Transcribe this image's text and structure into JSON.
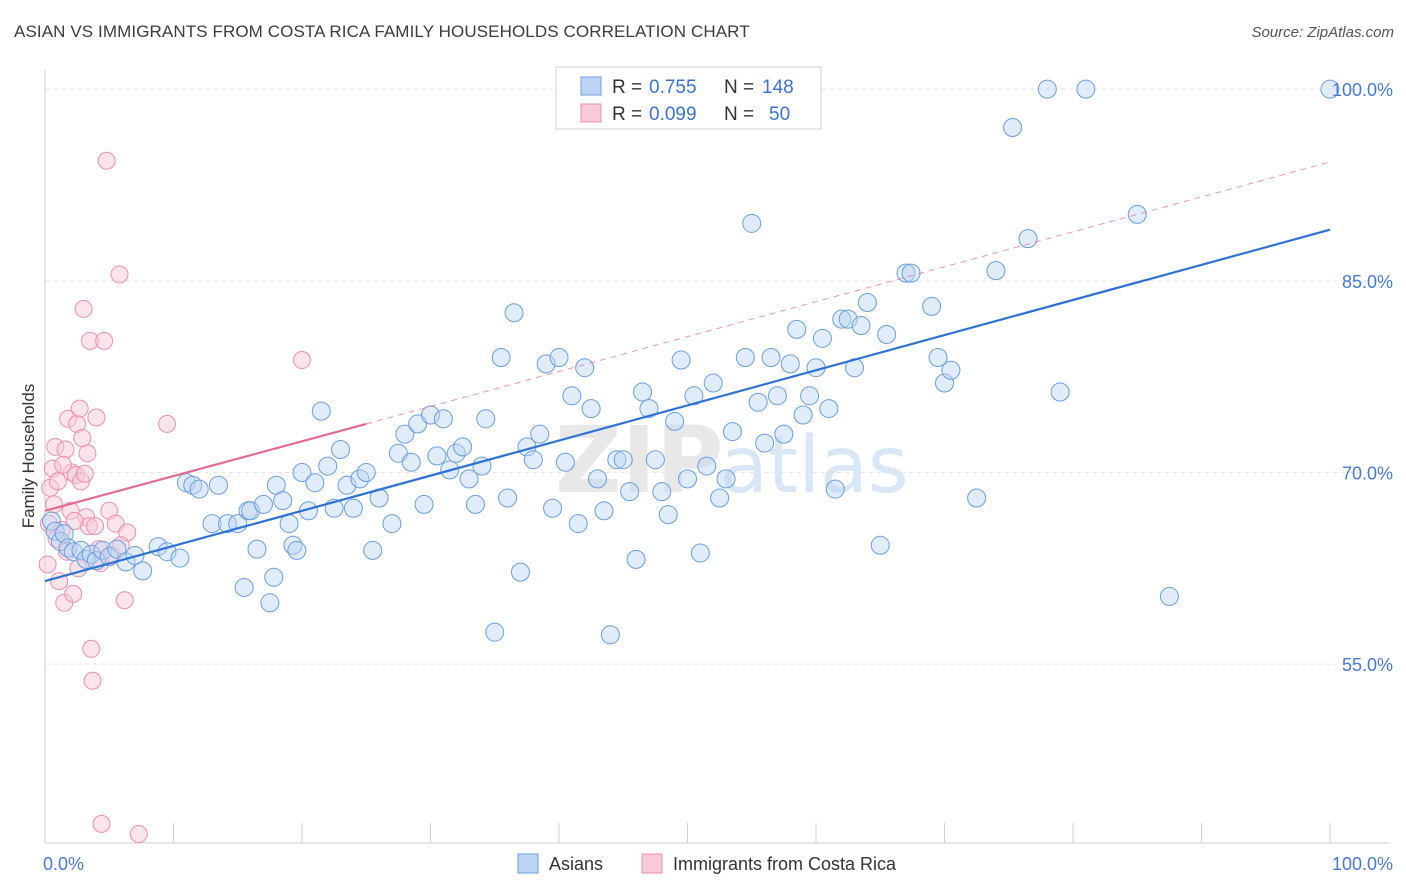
{
  "header": {
    "title": "ASIAN VS IMMIGRANTS FROM COSTA RICA FAMILY HOUSEHOLDS CORRELATION CHART",
    "source": "Source: ZipAtlas.com"
  },
  "watermark": {
    "zip": "ZIP",
    "atlas": "atlas"
  },
  "legend_top": {
    "rows": [
      {
        "r_label": "R =",
        "r_value": "0.755",
        "n_label": "N =",
        "n_value": "148",
        "color": "#a9c8f2"
      },
      {
        "r_label": "R =",
        "r_value": "0.099",
        "n_label": "N =",
        "n_value": "50",
        "color": "#f7b9cc"
      }
    ]
  },
  "chart_data": {
    "type": "scatter",
    "title": "ASIAN VS IMMIGRANTS FROM COSTA RICA FAMILY HOUSEHOLDS CORRELATION CHART",
    "xlabel": "",
    "ylabel": "Family Households",
    "xlim": [
      0,
      100
    ],
    "ylim": [
      41,
      101.5
    ],
    "x_tick_labels": [
      "0.0%",
      "100.0%"
    ],
    "y_ticks": [
      55,
      70,
      85,
      100
    ],
    "y_tick_labels": [
      "55.0%",
      "70.0%",
      "85.0%",
      "100.0%"
    ],
    "legend_position": "bottom-center",
    "colors": {
      "asians": "#6a9ee0",
      "asians_fill": "#bcd5f5",
      "asians_line": "#2e73d2",
      "costa": "#ee8fae",
      "costa_fill": "#f9c9d8",
      "costa_line": "#e36b95",
      "axis_text": "#4a7ad0"
    },
    "series": [
      {
        "name": "Asians",
        "R": 0.755,
        "N": 148,
        "trend": {
          "x": [
            0,
            100
          ],
          "y": [
            61.5,
            89.0
          ]
        },
        "points": [
          [
            0.5,
            66.2
          ],
          [
            0.8,
            65.4
          ],
          [
            1.2,
            64.6
          ],
          [
            1.5,
            65.2
          ],
          [
            1.8,
            64.1
          ],
          [
            2.2,
            63.8
          ],
          [
            2.8,
            63.9
          ],
          [
            3.2,
            63.2
          ],
          [
            3.6,
            63.6
          ],
          [
            4.0,
            63.1
          ],
          [
            4.5,
            63.9
          ],
          [
            5.0,
            63.4
          ],
          [
            5.6,
            64.0
          ],
          [
            6.3,
            63.0
          ],
          [
            7.0,
            63.5
          ],
          [
            7.6,
            62.3
          ],
          [
            8.8,
            64.2
          ],
          [
            9.5,
            63.8
          ],
          [
            10.5,
            63.3
          ],
          [
            11.0,
            69.2
          ],
          [
            11.5,
            69.0
          ],
          [
            12.0,
            68.7
          ],
          [
            13.0,
            66.0
          ],
          [
            13.5,
            69.0
          ],
          [
            14.2,
            66.0
          ],
          [
            15.0,
            66.0
          ],
          [
            15.5,
            61.0
          ],
          [
            15.8,
            67.0
          ],
          [
            16.0,
            67.0
          ],
          [
            16.5,
            64.0
          ],
          [
            17.0,
            67.5
          ],
          [
            17.5,
            59.8
          ],
          [
            17.8,
            61.8
          ],
          [
            18.0,
            69.0
          ],
          [
            18.5,
            67.8
          ],
          [
            19.0,
            66.0
          ],
          [
            19.3,
            64.3
          ],
          [
            19.6,
            63.9
          ],
          [
            20.0,
            70.0
          ],
          [
            20.5,
            67.0
          ],
          [
            21.0,
            69.2
          ],
          [
            21.5,
            74.8
          ],
          [
            22.0,
            70.5
          ],
          [
            22.5,
            67.2
          ],
          [
            23.0,
            71.8
          ],
          [
            23.5,
            69.0
          ],
          [
            24.0,
            67.2
          ],
          [
            24.5,
            69.5
          ],
          [
            25.0,
            70.0
          ],
          [
            25.5,
            63.9
          ],
          [
            26.0,
            68.0
          ],
          [
            27.0,
            66.0
          ],
          [
            27.5,
            71.5
          ],
          [
            28.0,
            73.0
          ],
          [
            28.5,
            70.8
          ],
          [
            29.0,
            73.8
          ],
          [
            29.5,
            67.5
          ],
          [
            30.0,
            74.5
          ],
          [
            30.5,
            71.3
          ],
          [
            31.0,
            74.2
          ],
          [
            31.5,
            70.2
          ],
          [
            32.0,
            71.5
          ],
          [
            32.5,
            72.0
          ],
          [
            33.0,
            69.5
          ],
          [
            33.5,
            67.5
          ],
          [
            34.0,
            70.5
          ],
          [
            34.3,
            74.2
          ],
          [
            35.0,
            57.5
          ],
          [
            35.5,
            79.0
          ],
          [
            36.0,
            68.0
          ],
          [
            36.5,
            82.5
          ],
          [
            37.0,
            62.2
          ],
          [
            37.5,
            72.0
          ],
          [
            38.0,
            71.0
          ],
          [
            38.5,
            73.0
          ],
          [
            39.0,
            78.5
          ],
          [
            39.5,
            67.2
          ],
          [
            40.0,
            79.0
          ],
          [
            40.5,
            70.8
          ],
          [
            41.0,
            76.0
          ],
          [
            41.5,
            66.0
          ],
          [
            42.0,
            78.2
          ],
          [
            42.5,
            75.0
          ],
          [
            43.0,
            69.5
          ],
          [
            43.5,
            67.0
          ],
          [
            44.0,
            57.3
          ],
          [
            44.5,
            71.0
          ],
          [
            45.0,
            71.0
          ],
          [
            45.5,
            68.5
          ],
          [
            46.0,
            63.2
          ],
          [
            46.5,
            76.3
          ],
          [
            47.0,
            75.0
          ],
          [
            47.5,
            71.0
          ],
          [
            48.0,
            68.5
          ],
          [
            48.5,
            66.7
          ],
          [
            49.0,
            74.0
          ],
          [
            49.5,
            78.8
          ],
          [
            50.0,
            69.5
          ],
          [
            50.5,
            76.0
          ],
          [
            51.0,
            63.7
          ],
          [
            51.5,
            70.5
          ],
          [
            52.0,
            77.0
          ],
          [
            52.5,
            68.0
          ],
          [
            53.0,
            69.5
          ],
          [
            53.5,
            73.2
          ],
          [
            54.5,
            79.0
          ],
          [
            55.0,
            89.5
          ],
          [
            55.5,
            75.5
          ],
          [
            56.0,
            72.3
          ],
          [
            56.5,
            79.0
          ],
          [
            57.0,
            76.0
          ],
          [
            57.5,
            73.0
          ],
          [
            58.0,
            78.5
          ],
          [
            58.5,
            81.2
          ],
          [
            59.0,
            74.5
          ],
          [
            59.5,
            76.0
          ],
          [
            60.0,
            78.2
          ],
          [
            60.5,
            80.5
          ],
          [
            61.0,
            75.0
          ],
          [
            61.5,
            68.7
          ],
          [
            62.0,
            82.0
          ],
          [
            62.5,
            82.0
          ],
          [
            63.0,
            78.2
          ],
          [
            63.5,
            81.5
          ],
          [
            64.0,
            83.3
          ],
          [
            65.0,
            64.3
          ],
          [
            65.5,
            80.8
          ],
          [
            67.0,
            85.6
          ],
          [
            67.4,
            85.6
          ],
          [
            69.0,
            83.0
          ],
          [
            69.5,
            79.0
          ],
          [
            70.0,
            77.0
          ],
          [
            70.5,
            78.0
          ],
          [
            72.5,
            68.0
          ],
          [
            74.0,
            85.8
          ],
          [
            75.3,
            97.0
          ],
          [
            76.5,
            88.3
          ],
          [
            78.0,
            100.0
          ],
          [
            79.0,
            76.3
          ],
          [
            81.0,
            100.0
          ],
          [
            85.0,
            90.2
          ],
          [
            87.5,
            60.3
          ],
          [
            100.0,
            100.0
          ]
        ]
      },
      {
        "name": "Immigrants from Costa Rica",
        "R": 0.099,
        "N": 50,
        "trend": {
          "x": [
            0,
            25
          ],
          "y": [
            67.0,
            73.8
          ]
        },
        "trend_extrapolated": {
          "x": [
            25,
            100
          ],
          "y": [
            73.8,
            94.3
          ]
        },
        "points": [
          [
            0.2,
            62.8
          ],
          [
            0.3,
            66.0
          ],
          [
            0.4,
            68.8
          ],
          [
            0.6,
            70.3
          ],
          [
            0.8,
            72.0
          ],
          [
            1.0,
            69.3
          ],
          [
            1.1,
            61.5
          ],
          [
            1.3,
            65.5
          ],
          [
            1.5,
            59.8
          ],
          [
            1.6,
            71.8
          ],
          [
            1.8,
            74.2
          ],
          [
            2.0,
            67.0
          ],
          [
            2.1,
            70.0
          ],
          [
            2.2,
            60.5
          ],
          [
            2.4,
            69.8
          ],
          [
            2.5,
            73.8
          ],
          [
            2.6,
            62.5
          ],
          [
            2.7,
            75.0
          ],
          [
            2.8,
            69.3
          ],
          [
            3.0,
            82.8
          ],
          [
            3.2,
            66.5
          ],
          [
            3.3,
            71.5
          ],
          [
            3.4,
            65.8
          ],
          [
            3.5,
            80.3
          ],
          [
            3.6,
            56.2
          ],
          [
            3.7,
            53.7
          ],
          [
            3.9,
            65.8
          ],
          [
            4.0,
            74.3
          ],
          [
            4.2,
            64.0
          ],
          [
            4.4,
            42.5
          ],
          [
            4.6,
            80.3
          ],
          [
            4.8,
            94.4
          ],
          [
            5.0,
            67.0
          ],
          [
            5.2,
            63.5
          ],
          [
            5.5,
            66.0
          ],
          [
            5.8,
            85.5
          ],
          [
            6.2,
            60.0
          ],
          [
            6.4,
            65.3
          ],
          [
            7.3,
            41.7
          ],
          [
            9.5,
            73.8
          ],
          [
            20.0,
            78.8
          ],
          [
            2.3,
            66.2
          ],
          [
            1.7,
            63.8
          ],
          [
            0.9,
            64.8
          ],
          [
            3.1,
            69.9
          ],
          [
            4.3,
            62.9
          ],
          [
            5.9,
            64.3
          ],
          [
            1.4,
            70.6
          ],
          [
            2.9,
            72.7
          ],
          [
            0.7,
            67.5
          ]
        ]
      }
    ]
  },
  "legend_bottom": {
    "items": [
      {
        "label": "Asians",
        "color": "#bcd5f5"
      },
      {
        "label": "Immigrants from Costa Rica",
        "color": "#f9c9d8"
      }
    ]
  }
}
